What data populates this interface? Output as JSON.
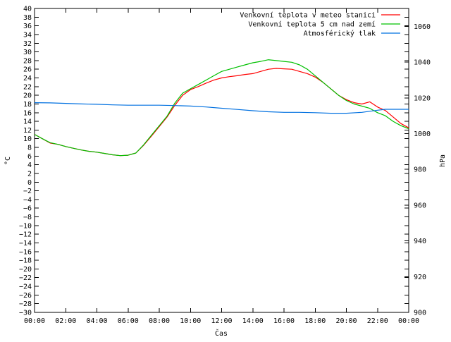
{
  "chart_data": {
    "type": "line",
    "xlabel": "Čas",
    "ylabel": "°C",
    "y2label": "hPa",
    "xticks": [
      "00:00",
      "02:00",
      "04:00",
      "06:00",
      "08:00",
      "10:00",
      "12:00",
      "14:00",
      "16:00",
      "18:00",
      "20:00",
      "22:00",
      "00:00"
    ],
    "ylim": [
      -30,
      40
    ],
    "yticks": [
      40,
      38,
      36,
      34,
      32,
      30,
      28,
      26,
      24,
      22,
      20,
      18,
      16,
      14,
      12,
      10,
      8,
      6,
      4,
      2,
      0,
      -2,
      -4,
      -6,
      -8,
      -10,
      -12,
      -14,
      -16,
      -18,
      -20,
      -22,
      -24,
      -26,
      -28,
      -30
    ],
    "y2lim": [
      900,
      1070
    ],
    "y2ticks": [
      1060,
      1040,
      1020,
      1000,
      980,
      960,
      940,
      920,
      900
    ],
    "legend_position": "top-right",
    "grid": false,
    "series": [
      {
        "name": "Venkovní teplota v meteo stanici",
        "color": "#ff0000",
        "axis": "left",
        "x": [
          0,
          0.5,
          1,
          1.5,
          2,
          2.5,
          3,
          3.5,
          4,
          4.5,
          5,
          5.5,
          6,
          6.5,
          7,
          7.5,
          8,
          8.5,
          9,
          9.5,
          10,
          10.5,
          11,
          11.5,
          12,
          12.5,
          13,
          13.5,
          14,
          14.5,
          15,
          15.5,
          16,
          16.5,
          17,
          17.5,
          18,
          18.5,
          19,
          19.5,
          20,
          20.5,
          21,
          21.5,
          22,
          22.5,
          23,
          23.5,
          24
        ],
        "y": [
          11,
          10,
          9,
          8.7,
          8.2,
          7.8,
          7.4,
          7.1,
          6.9,
          6.6,
          6.3,
          6.1,
          6.2,
          6.7,
          8.5,
          10.6,
          12.8,
          15,
          17.7,
          20,
          21.3,
          22,
          22.8,
          23.5,
          24,
          24.3,
          24.5,
          24.8,
          25,
          25.5,
          26,
          26.2,
          26.1,
          26,
          25.5,
          25,
          24.2,
          23,
          21.5,
          20,
          19,
          18.3,
          18,
          18.5,
          17.3,
          16.5,
          15,
          13.5,
          12.5
        ]
      },
      {
        "name": "Venkovní teplota 5 cm nad zemí",
        "color": "#00c000",
        "axis": "left",
        "x": [
          0,
          0.5,
          1,
          1.5,
          2,
          2.5,
          3,
          3.5,
          4,
          4.5,
          5,
          5.5,
          6,
          6.5,
          7,
          7.5,
          8,
          8.5,
          9,
          9.5,
          10,
          10.5,
          11,
          11.5,
          12,
          12.5,
          13,
          13.5,
          14,
          14.5,
          15,
          15.5,
          16,
          16.5,
          17,
          17.5,
          18,
          18.5,
          19,
          19.5,
          20,
          20.5,
          21,
          21.5,
          22,
          22.5,
          23,
          23.5,
          24
        ],
        "y": [
          11,
          10,
          9.1,
          8.7,
          8.2,
          7.8,
          7.4,
          7.1,
          6.9,
          6.6,
          6.3,
          6.1,
          6.2,
          6.7,
          8.6,
          10.8,
          13,
          15.2,
          18.2,
          20.5,
          21.5,
          22.5,
          23.5,
          24.5,
          25.5,
          26,
          26.5,
          27,
          27.5,
          27.8,
          28.2,
          28,
          27.8,
          27.6,
          27,
          26,
          24.5,
          23,
          21.5,
          20,
          18.8,
          18,
          17.5,
          17,
          16,
          15.3,
          14,
          13,
          12.3
        ]
      },
      {
        "name": "Atmosférický tlak",
        "color": "#0070e0",
        "axis": "right",
        "x": [
          0,
          1,
          2,
          3,
          4,
          5,
          6,
          7,
          8,
          9,
          10,
          11,
          12,
          13,
          14,
          15,
          16,
          17,
          18,
          19,
          20,
          21,
          22,
          22.5,
          23,
          24
        ],
        "y": [
          1017.3,
          1017.2,
          1016.9,
          1016.6,
          1016.4,
          1016.1,
          1015.9,
          1015.9,
          1015.9,
          1015.7,
          1015.4,
          1014.9,
          1014.2,
          1013.5,
          1012.8,
          1012.2,
          1011.9,
          1011.9,
          1011.7,
          1011.4,
          1011.4,
          1011.9,
          1013.1,
          1013.6,
          1013.6,
          1013.6
        ]
      }
    ]
  }
}
